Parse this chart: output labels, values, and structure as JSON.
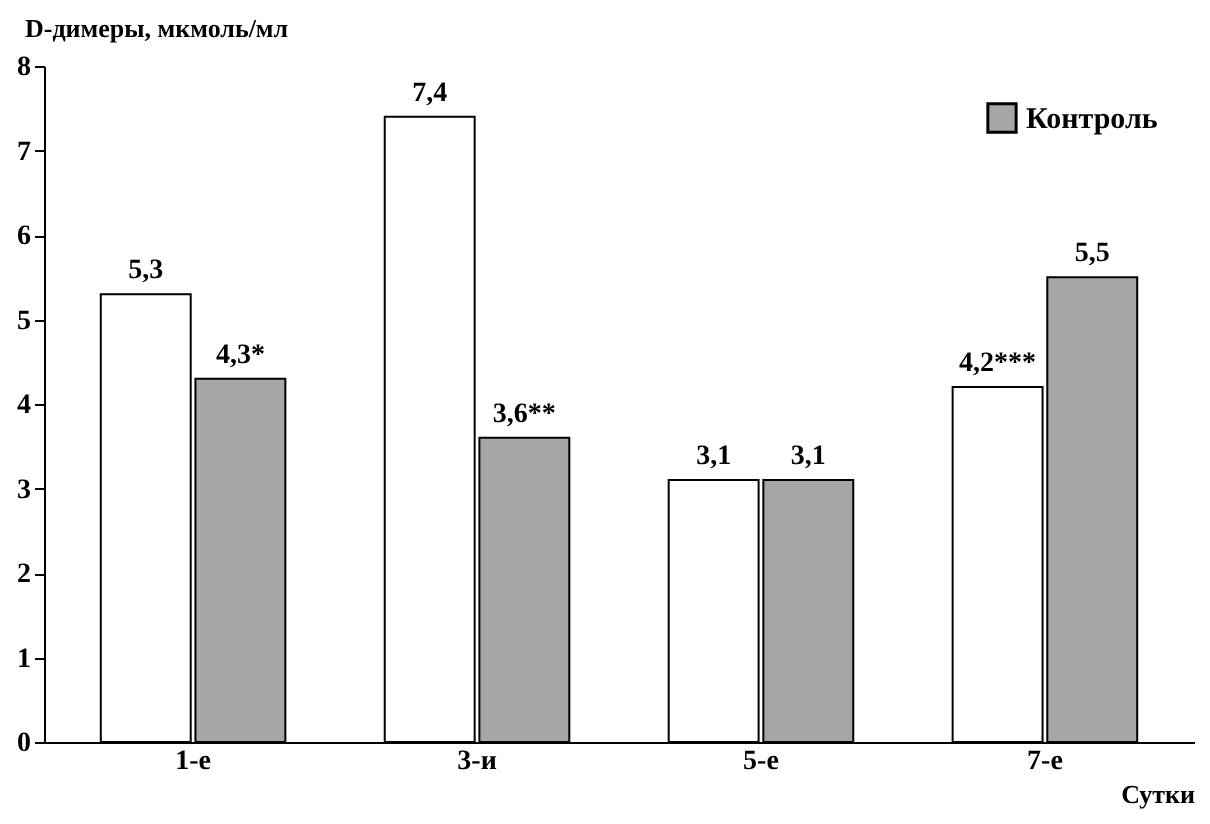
{
  "chart_data": {
    "type": "bar",
    "ylabel": "D-димеры, мкмоль/мл",
    "xlabel": "Сутки",
    "categories": [
      "1-е",
      "3-и",
      "5-е",
      "7-е"
    ],
    "series": [
      {
        "color": "#ffffff",
        "values": [
          5.3,
          7.4,
          3.1,
          4.2
        ],
        "value_labels": [
          "5,3",
          "7,4",
          "3,1",
          "4,2***"
        ]
      },
      {
        "name": "Контроль",
        "color": "#a6a6a6",
        "values": [
          4.3,
          3.6,
          3.1,
          5.5
        ],
        "value_labels": [
          "4,3*",
          "3,6**",
          "3,1",
          "5,5"
        ]
      }
    ],
    "ylim": [
      0,
      8
    ],
    "yticks": [
      0,
      1,
      2,
      3,
      4,
      5,
      6,
      7,
      8
    ],
    "grid": false,
    "legend": "top right"
  }
}
